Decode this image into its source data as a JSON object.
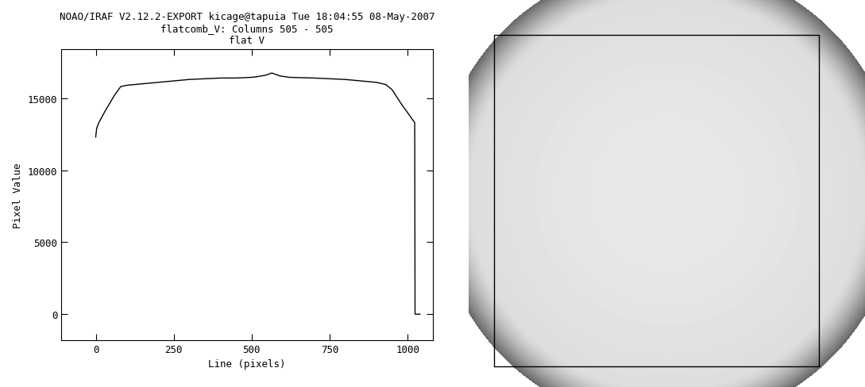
{
  "chart_data": {
    "type": "line",
    "title": "NOAO/IRAF V2.12.2-EXPORT kicage@tapuia Tue 18:04:55 08-May-2007\nflatcomb_V: Columns 505 - 505\nflat V",
    "xlabel": "Line (pixels)",
    "ylabel": "Pixel Value",
    "x": [
      0,
      3,
      10,
      30,
      60,
      80,
      100,
      150,
      200,
      250,
      300,
      350,
      400,
      450,
      500,
      520,
      545,
      565,
      590,
      620,
      700,
      750,
      800,
      850,
      900,
      930,
      950,
      980,
      1000,
      1023,
      1024,
      1040
    ],
    "values": [
      12300,
      12900,
      13300,
      14100,
      15200,
      15800,
      15900,
      16000,
      16100,
      16200,
      16300,
      16350,
      16400,
      16400,
      16450,
      16500,
      16600,
      16750,
      16550,
      16450,
      16400,
      16350,
      16300,
      16200,
      16100,
      15950,
      15600,
      14600,
      14000,
      13300,
      0,
      0
    ],
    "color": "#000000",
    "xlim": [
      -110,
      1080
    ],
    "ylim": [
      -1800,
      18400
    ],
    "xticks": [
      0,
      250,
      500,
      750,
      1000
    ],
    "yticks": [
      0,
      5000,
      10000,
      15000
    ]
  }
}
